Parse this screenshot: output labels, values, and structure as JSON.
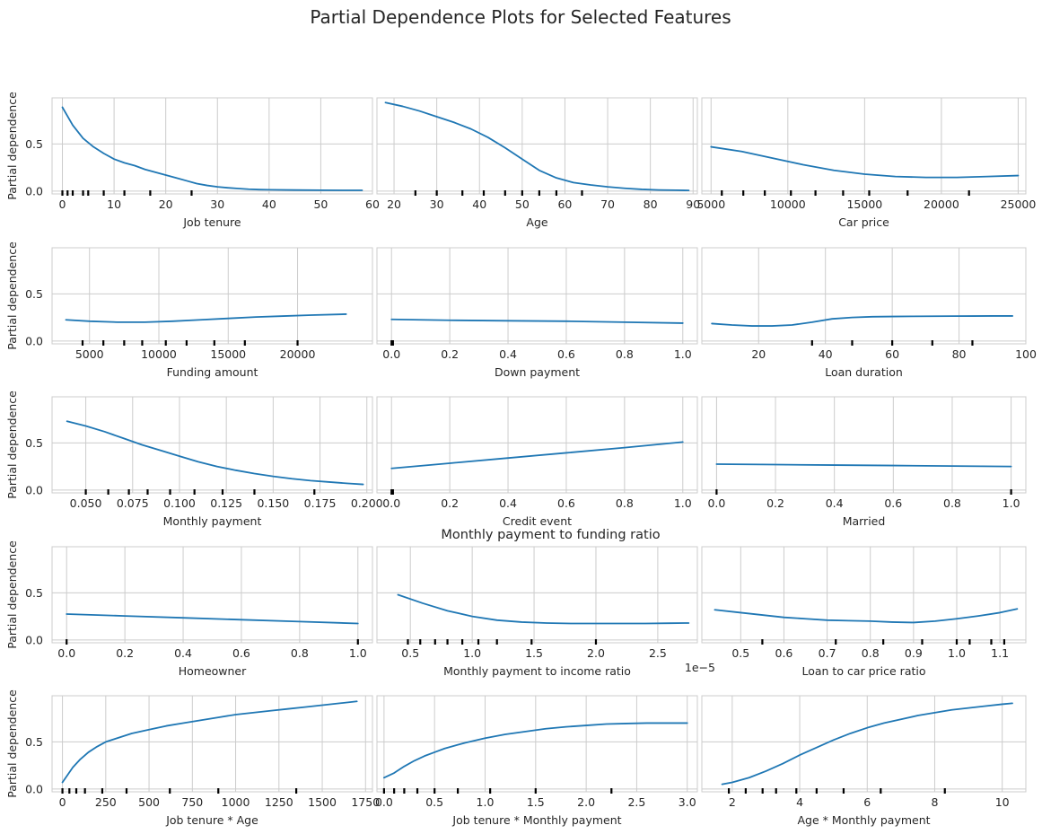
{
  "figure": {
    "title": "Partial Dependence Plots for Selected Features",
    "line_color": "#1f77b4",
    "grid_color": "#cccccc",
    "spine_color": "#cccccc"
  },
  "chart_data": [
    {
      "type": "line",
      "xlabel": "Job tenure",
      "ylabel": "Partial dependence",
      "xlim": [
        -2,
        60
      ],
      "ylim": [
        -0.03,
        0.99
      ],
      "xticks": [
        0,
        10,
        20,
        30,
        40,
        50,
        60
      ],
      "xtick_labels": [
        "0",
        "10",
        "20",
        "30",
        "40",
        "50",
        "60"
      ],
      "yticks": [
        0,
        0.5
      ],
      "ytick_labels": [
        "0.0",
        "0.5"
      ],
      "x": [
        0,
        2,
        4,
        6,
        8,
        10,
        12,
        14,
        16,
        18,
        20,
        22,
        24,
        26,
        28,
        30,
        32,
        34,
        36,
        38,
        40,
        45,
        50,
        55,
        58
      ],
      "y": [
        0.89,
        0.7,
        0.56,
        0.47,
        0.4,
        0.34,
        0.3,
        0.27,
        0.23,
        0.2,
        0.17,
        0.14,
        0.11,
        0.08,
        0.06,
        0.045,
        0.035,
        0.027,
        0.02,
        0.016,
        0.014,
        0.011,
        0.009,
        0.008,
        0.008
      ],
      "rug": [
        0,
        1,
        2,
        4,
        5,
        8,
        12,
        17,
        25
      ]
    },
    {
      "type": "line",
      "xlabel": "Age",
      "xlim": [
        16,
        91
      ],
      "ylim": [
        -0.03,
        0.99
      ],
      "xticks": [
        20,
        30,
        40,
        50,
        60,
        70,
        80,
        90
      ],
      "xtick_labels": [
        "20",
        "30",
        "40",
        "50",
        "60",
        "70",
        "80",
        "90"
      ],
      "yticks": [
        0,
        0.5
      ],
      "ytick_labels": [
        "",
        ""
      ],
      "x": [
        18,
        22,
        26,
        30,
        34,
        38,
        42,
        46,
        50,
        54,
        58,
        62,
        66,
        70,
        74,
        78,
        82,
        86,
        89
      ],
      "y": [
        0.94,
        0.9,
        0.85,
        0.79,
        0.73,
        0.66,
        0.57,
        0.46,
        0.34,
        0.22,
        0.14,
        0.09,
        0.065,
        0.045,
        0.03,
        0.018,
        0.012,
        0.009,
        0.007
      ],
      "rug": [
        25,
        30,
        36,
        41,
        46,
        50,
        54,
        58,
        64
      ]
    },
    {
      "type": "line",
      "xlabel": "Car price",
      "xlim": [
        4400,
        25500
      ],
      "ylim": [
        -0.03,
        0.99
      ],
      "xticks": [
        5000,
        10000,
        15000,
        20000,
        25000
      ],
      "xtick_labels": [
        "5000",
        "10000",
        "15000",
        "20000",
        "25000"
      ],
      "yticks": [
        0,
        0.5
      ],
      "ytick_labels": [
        "",
        ""
      ],
      "x": [
        5000,
        7000,
        9000,
        11000,
        13000,
        15000,
        17000,
        19000,
        21000,
        23000,
        25000
      ],
      "y": [
        0.47,
        0.42,
        0.35,
        0.28,
        0.22,
        0.18,
        0.155,
        0.145,
        0.145,
        0.155,
        0.165
      ],
      "rug": [
        5700,
        7100,
        8500,
        10200,
        11800,
        13600,
        15300,
        17800,
        21800
      ]
    },
    {
      "type": "line",
      "xlabel": "Funding amount",
      "ylabel": "Partial dependence",
      "xlim": [
        2300,
        25400
      ],
      "ylim": [
        -0.03,
        0.99
      ],
      "xticks": [
        5000,
        10000,
        15000,
        20000
      ],
      "xtick_labels": [
        "5000",
        "10000",
        "15000",
        "20000"
      ],
      "yticks": [
        0,
        0.5
      ],
      "ytick_labels": [
        "0.0",
        "0.5"
      ],
      "x": [
        3300,
        5000,
        7000,
        9000,
        11000,
        13000,
        15000,
        17000,
        19000,
        21000,
        23500
      ],
      "y": [
        0.225,
        0.21,
        0.2,
        0.2,
        0.21,
        0.225,
        0.24,
        0.255,
        0.265,
        0.275,
        0.285
      ],
      "rug": [
        4500,
        6000,
        7500,
        8800,
        10500,
        12000,
        14000,
        16200,
        20000
      ]
    },
    {
      "type": "line",
      "xlabel": "Down payment",
      "xlim": [
        -0.05,
        1.05
      ],
      "ylim": [
        -0.03,
        0.99
      ],
      "xticks": [
        0,
        0.2,
        0.4,
        0.6,
        0.8,
        1.0
      ],
      "xtick_labels": [
        "0.0",
        "0.2",
        "0.4",
        "0.6",
        "0.8",
        "1.0"
      ],
      "yticks": [
        0,
        0.5
      ],
      "ytick_labels": [
        "",
        ""
      ],
      "x": [
        0,
        0.2,
        0.4,
        0.6,
        0.8,
        1.0
      ],
      "y": [
        0.23,
        0.22,
        0.215,
        0.21,
        0.2,
        0.19
      ],
      "rug": [
        0,
        0.005
      ]
    },
    {
      "type": "line",
      "xlabel": "Loan duration",
      "xlim": [
        3,
        100
      ],
      "ylim": [
        -0.03,
        0.99
      ],
      "xticks": [
        20,
        40,
        60,
        80,
        100
      ],
      "xtick_labels": [
        "20",
        "40",
        "60",
        "80",
        "100"
      ],
      "yticks": [
        0,
        0.5
      ],
      "ytick_labels": [
        "",
        ""
      ],
      "x": [
        6,
        12,
        18,
        24,
        30,
        36,
        42,
        48,
        54,
        60,
        66,
        72,
        78,
        84,
        90,
        96
      ],
      "y": [
        0.185,
        0.17,
        0.16,
        0.16,
        0.17,
        0.2,
        0.235,
        0.25,
        0.258,
        0.26,
        0.262,
        0.263,
        0.264,
        0.265,
        0.266,
        0.266
      ],
      "rug": [
        36,
        48,
        60,
        72,
        84
      ]
    },
    {
      "type": "line",
      "xlabel": "Monthly payment",
      "ylabel": "Partial dependence",
      "xlim": [
        0.032,
        0.203
      ],
      "ylim": [
        -0.03,
        0.99
      ],
      "xticks": [
        0.05,
        0.075,
        0.1,
        0.125,
        0.15,
        0.175,
        0.2
      ],
      "xtick_labels": [
        "0.050",
        "0.075",
        "0.100",
        "0.125",
        "0.150",
        "0.175",
        "0.200"
      ],
      "yticks": [
        0,
        0.5
      ],
      "ytick_labels": [
        "0.0",
        "0.5"
      ],
      "x": [
        0.04,
        0.05,
        0.06,
        0.07,
        0.08,
        0.09,
        0.1,
        0.11,
        0.12,
        0.13,
        0.14,
        0.15,
        0.16,
        0.17,
        0.18,
        0.19,
        0.198
      ],
      "y": [
        0.73,
        0.68,
        0.62,
        0.55,
        0.48,
        0.42,
        0.36,
        0.3,
        0.25,
        0.21,
        0.175,
        0.145,
        0.12,
        0.1,
        0.085,
        0.07,
        0.06
      ],
      "rug": [
        0.05,
        0.062,
        0.073,
        0.083,
        0.095,
        0.108,
        0.123,
        0.14,
        0.172
      ]
    },
    {
      "type": "line",
      "xlabel": "Credit event",
      "xlim": [
        -0.05,
        1.05
      ],
      "ylim": [
        -0.03,
        0.99
      ],
      "xticks": [
        0,
        0.2,
        0.4,
        0.6,
        0.8,
        1.0
      ],
      "xtick_labels": [
        "0.0",
        "0.2",
        "0.4",
        "0.6",
        "0.8",
        "1.0"
      ],
      "yticks": [
        0,
        0.5
      ],
      "ytick_labels": [
        "",
        ""
      ],
      "x": [
        0,
        0.2,
        0.4,
        0.6,
        0.8,
        1.0
      ],
      "y": [
        0.23,
        0.285,
        0.34,
        0.395,
        0.45,
        0.51
      ],
      "rug": [
        0,
        0.005
      ]
    },
    {
      "type": "line",
      "xlabel": "Married",
      "xlim": [
        -0.05,
        1.05
      ],
      "ylim": [
        -0.03,
        0.99
      ],
      "xticks": [
        0,
        0.2,
        0.4,
        0.6,
        0.8,
        1.0
      ],
      "xtick_labels": [
        "0.0",
        "0.2",
        "0.4",
        "0.6",
        "0.8",
        "1.0"
      ],
      "yticks": [
        0,
        0.5
      ],
      "ytick_labels": [
        "",
        ""
      ],
      "x": [
        0,
        0.2,
        0.4,
        0.6,
        0.8,
        1.0
      ],
      "y": [
        0.275,
        0.27,
        0.265,
        0.26,
        0.255,
        0.25
      ],
      "rug": [
        0,
        1.0
      ]
    },
    {
      "type": "line",
      "xlabel": "Homeowner",
      "ylabel": "Partial dependence",
      "xlim": [
        -0.05,
        1.05
      ],
      "ylim": [
        -0.03,
        0.99
      ],
      "xticks": [
        0,
        0.2,
        0.4,
        0.6,
        0.8,
        1.0
      ],
      "xtick_labels": [
        "0.0",
        "0.2",
        "0.4",
        "0.6",
        "0.8",
        "1.0"
      ],
      "yticks": [
        0,
        0.5
      ],
      "ytick_labels": [
        "0.0",
        "0.5"
      ],
      "x": [
        0,
        0.2,
        0.4,
        0.6,
        0.8,
        1.0
      ],
      "y": [
        0.275,
        0.255,
        0.235,
        0.215,
        0.195,
        0.175
      ],
      "rug": [
        0,
        1.0
      ]
    },
    {
      "type": "line",
      "title": "Monthly payment to funding ratio",
      "xlabel": "Monthly payment to income ratio",
      "xlim": [
        0.23,
        2.82
      ],
      "ylim": [
        -0.03,
        0.99
      ],
      "axis_offset": "1e−5",
      "xticks": [
        0.5,
        1.0,
        1.5,
        2.0,
        2.5
      ],
      "xtick_labels": [
        "0.5",
        "1.0",
        "1.5",
        "2.0",
        "2.5"
      ],
      "yticks": [
        0,
        0.5
      ],
      "ytick_labels": [
        "",
        ""
      ],
      "x": [
        0.4,
        0.6,
        0.8,
        1.0,
        1.2,
        1.4,
        1.6,
        1.8,
        2.0,
        2.2,
        2.4,
        2.6,
        2.75
      ],
      "y": [
        0.48,
        0.39,
        0.31,
        0.25,
        0.21,
        0.19,
        0.18,
        0.175,
        0.175,
        0.175,
        0.175,
        0.178,
        0.18
      ],
      "rug": [
        0.48,
        0.58,
        0.7,
        0.8,
        0.92,
        1.05,
        1.2,
        1.48,
        2.0
      ]
    },
    {
      "type": "line",
      "xlabel": "Loan to car price ratio",
      "xlim": [
        0.41,
        1.16
      ],
      "ylim": [
        -0.03,
        0.99
      ],
      "xticks": [
        0.5,
        0.6,
        0.7,
        0.8,
        0.9,
        1.0,
        1.1
      ],
      "xtick_labels": [
        "0.5",
        "0.6",
        "0.7",
        "0.8",
        "0.9",
        "1.0",
        "1.1"
      ],
      "yticks": [
        0,
        0.5
      ],
      "ytick_labels": [
        "",
        ""
      ],
      "x": [
        0.44,
        0.5,
        0.55,
        0.6,
        0.65,
        0.7,
        0.75,
        0.8,
        0.85,
        0.9,
        0.95,
        1.0,
        1.05,
        1.1,
        1.14
      ],
      "y": [
        0.32,
        0.29,
        0.265,
        0.24,
        0.225,
        0.21,
        0.205,
        0.2,
        0.19,
        0.185,
        0.2,
        0.225,
        0.255,
        0.29,
        0.33
      ],
      "rug": [
        0.55,
        0.72,
        0.83,
        0.92,
        1.0,
        1.03,
        1.08,
        1.11
      ]
    },
    {
      "type": "line",
      "xlabel": "Job tenure * Age",
      "ylabel": "Partial dependence",
      "xlim": [
        -60,
        1790
      ],
      "ylim": [
        -0.03,
        0.99
      ],
      "xticks": [
        0,
        250,
        500,
        750,
        1000,
        1250,
        1500,
        1750
      ],
      "xtick_labels": [
        "0",
        "250",
        "500",
        "750",
        "1000",
        "1250",
        "1500",
        "1750"
      ],
      "yticks": [
        0,
        0.5
      ],
      "ytick_labels": [
        "0.0",
        "0.5"
      ],
      "x": [
        0,
        30,
        60,
        100,
        150,
        200,
        250,
        300,
        400,
        500,
        600,
        700,
        800,
        900,
        1000,
        1100,
        1200,
        1300,
        1400,
        1500,
        1600,
        1700
      ],
      "y": [
        0.07,
        0.15,
        0.23,
        0.31,
        0.39,
        0.45,
        0.5,
        0.53,
        0.59,
        0.63,
        0.67,
        0.7,
        0.73,
        0.76,
        0.79,
        0.81,
        0.83,
        0.85,
        0.87,
        0.89,
        0.91,
        0.93
      ],
      "rug": [
        0,
        40,
        80,
        130,
        230,
        370,
        620,
        900,
        1350
      ]
    },
    {
      "type": "line",
      "xlabel": "Job tenure * Monthly payment",
      "xlim": [
        -0.07,
        3.1
      ],
      "ylim": [
        -0.03,
        0.99
      ],
      "xticks": [
        0,
        0.5,
        1.0,
        1.5,
        2.0,
        2.5,
        3.0
      ],
      "xtick_labels": [
        "0.0",
        "0.5",
        "1.0",
        "1.5",
        "2.0",
        "2.5",
        "3.0"
      ],
      "yticks": [
        0,
        0.5
      ],
      "ytick_labels": [
        "",
        ""
      ],
      "x": [
        0,
        0.1,
        0.2,
        0.3,
        0.4,
        0.5,
        0.6,
        0.8,
        1.0,
        1.2,
        1.4,
        1.6,
        1.8,
        2.0,
        2.2,
        2.4,
        2.6,
        2.8,
        3.0
      ],
      "y": [
        0.12,
        0.17,
        0.24,
        0.3,
        0.35,
        0.39,
        0.43,
        0.49,
        0.54,
        0.58,
        0.61,
        0.64,
        0.66,
        0.675,
        0.69,
        0.695,
        0.7,
        0.7,
        0.7
      ],
      "rug": [
        0,
        0.1,
        0.2,
        0.33,
        0.5,
        0.73,
        1.05,
        1.5,
        2.25
      ]
    },
    {
      "type": "line",
      "xlabel": "Age * Monthly payment",
      "xlim": [
        1.1,
        10.7
      ],
      "ylim": [
        -0.03,
        0.99
      ],
      "xticks": [
        2,
        4,
        6,
        8,
        10
      ],
      "xtick_labels": [
        "2",
        "4",
        "6",
        "8",
        "10"
      ],
      "yticks": [
        0,
        0.5
      ],
      "ytick_labels": [
        "",
        ""
      ],
      "x": [
        1.7,
        2.0,
        2.5,
        3.0,
        3.5,
        4.0,
        4.5,
        5.0,
        5.5,
        6.0,
        6.5,
        7.0,
        7.5,
        8.0,
        8.5,
        9.0,
        9.5,
        10.0,
        10.3
      ],
      "y": [
        0.05,
        0.07,
        0.12,
        0.19,
        0.27,
        0.36,
        0.44,
        0.52,
        0.59,
        0.65,
        0.7,
        0.74,
        0.78,
        0.81,
        0.84,
        0.86,
        0.88,
        0.9,
        0.91
      ],
      "rug": [
        1.9,
        2.4,
        2.9,
        3.3,
        3.9,
        4.5,
        5.3,
        6.4,
        8.3
      ]
    }
  ]
}
